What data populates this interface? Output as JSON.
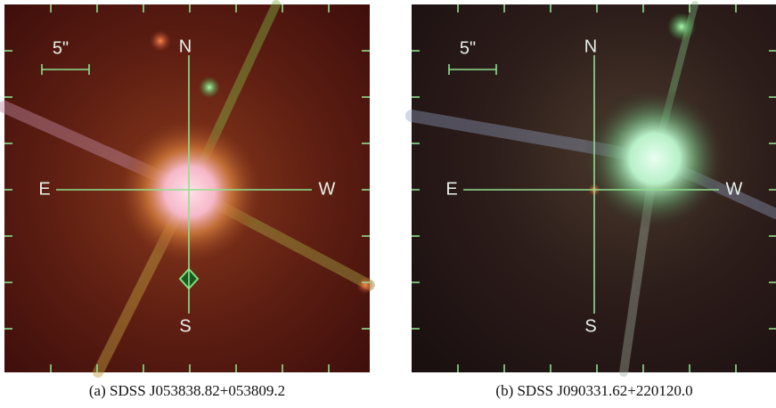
{
  "panels": [
    {
      "scale_label": "5\"",
      "north": "N",
      "south": "S",
      "east": "E",
      "west": "W",
      "caption": "(a) SDSS J053838.82+053809.2"
    },
    {
      "scale_label": "5\"",
      "north": "N",
      "south": "S",
      "east": "E",
      "west": "W",
      "caption": "(b) SDSS J090331.62+220120.0"
    }
  ]
}
